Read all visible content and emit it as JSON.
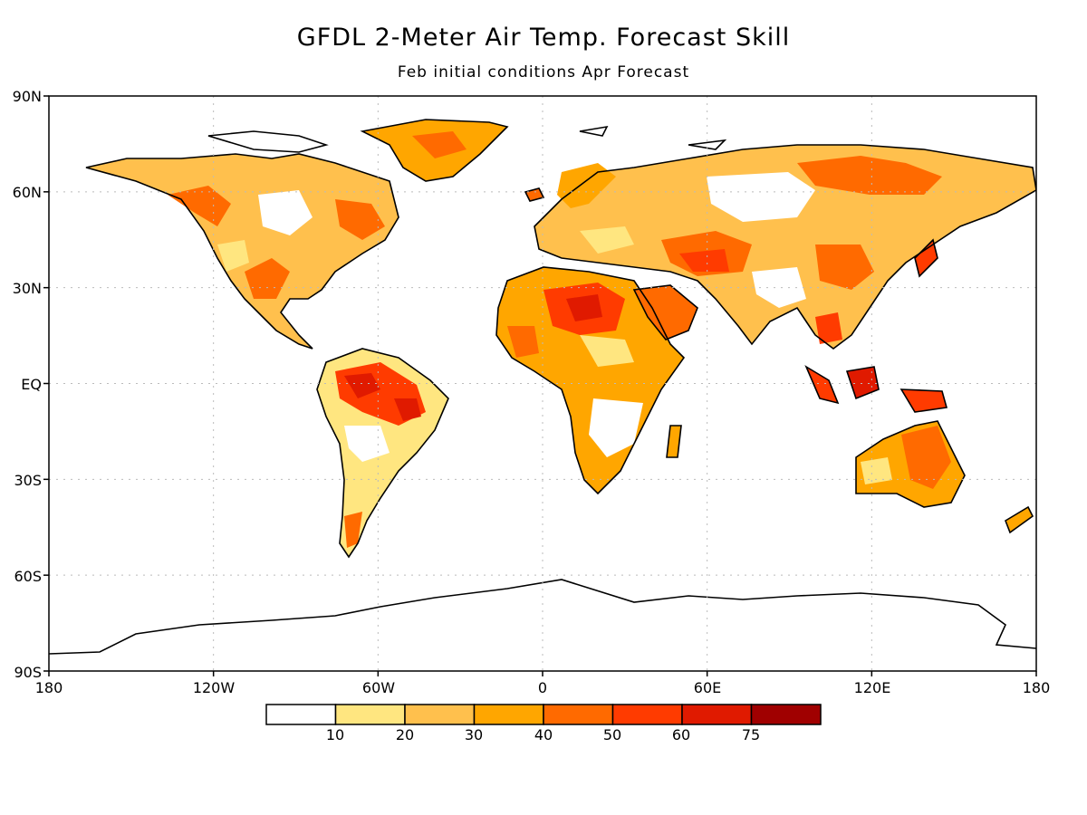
{
  "title": "GFDL 2-Meter Air Temp. Forecast Skill",
  "subtitle": "Feb initial conditions  Apr Forecast",
  "lat_labels": [
    "90N",
    "60N",
    "30N",
    "EQ",
    "30S",
    "60S",
    "90S"
  ],
  "lon_labels": [
    "180",
    "120W",
    "60W",
    "0",
    "60E",
    "120E",
    "180"
  ],
  "colorbar": {
    "colors": [
      "#ffffff",
      "#ffe680",
      "#ffc04d",
      "#ffa600",
      "#ff6a00",
      "#ff3b00",
      "#e01a00",
      "#a00000"
    ],
    "labels": [
      "10",
      "20",
      "30",
      "40",
      "50",
      "60",
      "75"
    ]
  },
  "colors": {
    "low": "#ffe680",
    "mid": "#ffa600",
    "high": "#ff3b00",
    "very_high": "#e01a00",
    "coast": "#000000",
    "grid": "#bbbbbb"
  }
}
